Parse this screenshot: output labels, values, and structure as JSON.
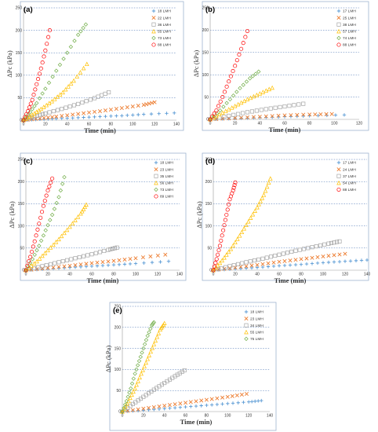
{
  "figure": {
    "colors": {
      "blue": "#5b9bd5",
      "orange": "#ed7d31",
      "gray": "#a5a5a5",
      "yellow": "#ffc000",
      "green": "#70ad47",
      "red": "#ff0000"
    }
  },
  "chart_data": [
    {
      "type": "scatter",
      "panel": "(a)",
      "xlabel": "Time (min)",
      "ylabel": "ΔPc (kPa)",
      "xlim": [
        0,
        140
      ],
      "ylim": [
        0,
        250
      ],
      "xticks": [
        "0",
        "20",
        "40",
        "60",
        "80",
        "100",
        "120",
        "140"
      ],
      "yticks": [
        "0",
        "50",
        "100",
        "150",
        "200",
        "250"
      ],
      "grid": true,
      "legend_position": "top-right",
      "series": [
        {
          "name": "18 LMH",
          "marker": "plus",
          "color": "#5b9bd5",
          "points": [
            [
              0,
              0
            ],
            [
              15,
              2
            ],
            [
              30,
              3.5
            ],
            [
              50,
              5.5
            ],
            [
              70,
              8
            ],
            [
              90,
              10
            ],
            [
              110,
              13
            ],
            [
              138,
              16
            ]
          ]
        },
        {
          "name": "22 LMH",
          "marker": "x",
          "color": "#ed7d31",
          "points": [
            [
              0,
              0
            ],
            [
              15,
              4
            ],
            [
              30,
              8
            ],
            [
              50,
              14
            ],
            [
              70,
              20
            ],
            [
              90,
              27
            ],
            [
              110,
              34
            ],
            [
              120,
              40
            ]
          ]
        },
        {
          "name": "36 LMH",
          "marker": "square",
          "color": "#a5a5a5",
          "points": [
            [
              0,
              0
            ],
            [
              10,
              8
            ],
            [
              20,
              15
            ],
            [
              35,
              25
            ],
            [
              50,
              36
            ],
            [
              65,
              49
            ],
            [
              78,
              62
            ]
          ]
        },
        {
          "name": "55 LMH",
          "marker": "triangle",
          "color": "#ffc000",
          "points": [
            [
              0,
              0
            ],
            [
              8,
              12
            ],
            [
              16,
              25
            ],
            [
              26,
              42
            ],
            [
              36,
              62
            ],
            [
              46,
              88
            ],
            [
              58,
              125
            ]
          ]
        },
        {
          "name": "73 LMH",
          "marker": "diamond",
          "color": "#70ad47",
          "points": [
            [
              0,
              0
            ],
            [
              6,
              18
            ],
            [
              12,
              38
            ],
            [
              20,
              70
            ],
            [
              30,
              110
            ],
            [
              40,
              150
            ],
            [
              50,
              190
            ],
            [
              57,
              213
            ]
          ]
        },
        {
          "name": "88 LMH",
          "marker": "circle",
          "color": "#ff0000",
          "points": [
            [
              0,
              0
            ],
            [
              4,
              20
            ],
            [
              8,
              45
            ],
            [
              12,
              80
            ],
            [
              16,
              115
            ],
            [
              20,
              155
            ],
            [
              24,
              200
            ]
          ]
        }
      ]
    },
    {
      "type": "scatter",
      "panel": "(b)",
      "xlabel": "Time (min)",
      "ylabel": "ΔPc (kPa)",
      "xlim": [
        0,
        120
      ],
      "ylim": [
        0,
        250
      ],
      "xticks": [
        "0",
        "20",
        "40",
        "60",
        "80",
        "100",
        "120"
      ],
      "yticks": [
        "0",
        "50",
        "100",
        "150",
        "200",
        "250"
      ],
      "grid": true,
      "legend_position": "top-right",
      "series": [
        {
          "name": "17 LMH",
          "marker": "plus",
          "color": "#5b9bd5",
          "points": [
            [
              0,
              0
            ],
            [
              20,
              2
            ],
            [
              40,
              4
            ],
            [
              60,
              6
            ],
            [
              80,
              8
            ],
            [
              108,
              10
            ]
          ]
        },
        {
          "name": "25 LMH",
          "marker": "x",
          "color": "#ed7d31",
          "points": [
            [
              0,
              0
            ],
            [
              20,
              3
            ],
            [
              40,
              6
            ],
            [
              60,
              9
            ],
            [
              80,
              11
            ],
            [
              98,
              12
            ]
          ]
        },
        {
          "name": "38 LMH",
          "marker": "square",
          "color": "#a5a5a5",
          "points": [
            [
              0,
              0
            ],
            [
              15,
              8
            ],
            [
              30,
              16
            ],
            [
              45,
              23
            ],
            [
              60,
              29
            ],
            [
              75,
              35
            ]
          ]
        },
        {
          "name": "57 LMH",
          "marker": "triangle",
          "color": "#ffc000",
          "points": [
            [
              0,
              0
            ],
            [
              10,
              15
            ],
            [
              20,
              30
            ],
            [
              30,
              45
            ],
            [
              40,
              58
            ],
            [
              50,
              71
            ]
          ]
        },
        {
          "name": "74 LMH",
          "marker": "diamond",
          "color": "#70ad47",
          "points": [
            [
              0,
              0
            ],
            [
              8,
              20
            ],
            [
              16,
              45
            ],
            [
              24,
              70
            ],
            [
              32,
              92
            ],
            [
              39,
              107
            ]
          ]
        },
        {
          "name": "88 LMH",
          "marker": "circle",
          "color": "#ff0000",
          "points": [
            [
              0,
              0
            ],
            [
              5,
              20
            ],
            [
              10,
              50
            ],
            [
              15,
              85
            ],
            [
              20,
              120
            ],
            [
              25,
              158
            ],
            [
              30,
              198
            ]
          ]
        }
      ]
    },
    {
      "type": "scatter",
      "panel": "(c)",
      "xlabel": "Time (min)",
      "ylabel": "ΔPc (kPa)",
      "xlim": [
        0,
        140
      ],
      "ylim": [
        0,
        250
      ],
      "xticks": [
        "0",
        "20",
        "40",
        "60",
        "80",
        "100",
        "120",
        "140"
      ],
      "yticks": [
        "0",
        "50",
        "100",
        "150",
        "200",
        "250"
      ],
      "grid": true,
      "legend_position": "top-right",
      "series": [
        {
          "name": "18 LMH",
          "marker": "plus",
          "color": "#5b9bd5",
          "points": [
            [
              0,
              0
            ],
            [
              20,
              3
            ],
            [
              40,
              6
            ],
            [
              60,
              9
            ],
            [
              80,
              12
            ],
            [
              100,
              15
            ],
            [
              130,
              20
            ]
          ]
        },
        {
          "name": "23 LMH",
          "marker": "x",
          "color": "#ed7d31",
          "points": [
            [
              0,
              0
            ],
            [
              20,
              5
            ],
            [
              40,
              10
            ],
            [
              60,
              16
            ],
            [
              80,
              21
            ],
            [
              100,
              27
            ],
            [
              127,
              35
            ]
          ]
        },
        {
          "name": "35 LMH",
          "marker": "square",
          "color": "#a5a5a5",
          "points": [
            [
              0,
              0
            ],
            [
              15,
              9
            ],
            [
              30,
              18
            ],
            [
              45,
              27
            ],
            [
              60,
              36
            ],
            [
              75,
              46
            ],
            [
              83,
              51
            ]
          ]
        },
        {
          "name": "56 LMH",
          "marker": "triangle",
          "color": "#ffc000",
          "points": [
            [
              0,
              0
            ],
            [
              10,
              20
            ],
            [
              20,
              45
            ],
            [
              30,
              70
            ],
            [
              40,
              98
            ],
            [
              50,
              128
            ],
            [
              55,
              148
            ]
          ]
        },
        {
          "name": "73 LMH",
          "marker": "diamond",
          "color": "#70ad47",
          "points": [
            [
              0,
              0
            ],
            [
              6,
              25
            ],
            [
              12,
              55
            ],
            [
              18,
              90
            ],
            [
              24,
              125
            ],
            [
              30,
              165
            ],
            [
              35,
              210
            ]
          ]
        },
        {
          "name": "89 LMH",
          "marker": "circle",
          "color": "#ff0000",
          "points": [
            [
              0,
              0
            ],
            [
              4,
              30
            ],
            [
              8,
              65
            ],
            [
              12,
              105
            ],
            [
              16,
              145
            ],
            [
              20,
              180
            ],
            [
              24,
              207
            ]
          ]
        }
      ]
    },
    {
      "type": "scatter",
      "panel": "(d)",
      "xlabel": "Time (min)",
      "ylabel": "ΔPc (kPa)",
      "xlim": [
        0,
        140
      ],
      "ylim": [
        0,
        250
      ],
      "xticks": [
        "0",
        "20",
        "40",
        "60",
        "80",
        "100",
        "120",
        "140"
      ],
      "yticks": [
        "0",
        "50",
        "100",
        "150",
        "200",
        "250"
      ],
      "grid": true,
      "legend_position": "top-right",
      "series": [
        {
          "name": "17 LMH",
          "marker": "plus",
          "color": "#5b9bd5",
          "points": [
            [
              0,
              0
            ],
            [
              20,
              3
            ],
            [
              40,
              6
            ],
            [
              60,
              10
            ],
            [
              80,
              13
            ],
            [
              100,
              17
            ],
            [
              120,
              20
            ],
            [
              140,
              23
            ]
          ]
        },
        {
          "name": "24 LMH",
          "marker": "x",
          "color": "#ed7d31",
          "points": [
            [
              0,
              0
            ],
            [
              20,
              6
            ],
            [
              40,
              12
            ],
            [
              60,
              19
            ],
            [
              80,
              25
            ],
            [
              100,
              31
            ],
            [
              120,
              37
            ]
          ]
        },
        {
          "name": "37 LMH",
          "marker": "square",
          "color": "#a5a5a5",
          "points": [
            [
              0,
              0
            ],
            [
              15,
              9
            ],
            [
              30,
              18
            ],
            [
              45,
              26
            ],
            [
              60,
              35
            ],
            [
              75,
              44
            ],
            [
              90,
              52
            ],
            [
              105,
              60
            ],
            [
              115,
              65
            ]
          ]
        },
        {
          "name": "54 LMH",
          "marker": "triangle",
          "color": "#ffc000",
          "points": [
            [
              0,
              0
            ],
            [
              8,
              22
            ],
            [
              16,
              48
            ],
            [
              24,
              78
            ],
            [
              32,
              110
            ],
            [
              40,
              142
            ],
            [
              46,
              170
            ],
            [
              52,
              207
            ]
          ]
        },
        {
          "name": "88 LMH",
          "marker": "circle",
          "color": "#ff0000",
          "points": [
            [
              0,
              0
            ],
            [
              3,
              25
            ],
            [
              6,
              55
            ],
            [
              9,
              90
            ],
            [
              12,
              125
            ],
            [
              15,
              160
            ],
            [
              18,
              180
            ],
            [
              20,
              198
            ]
          ]
        }
      ]
    },
    {
      "type": "scatter",
      "panel": "(e)",
      "xlabel": "Time (min)",
      "ylabel": "ΔPc (kPa)",
      "xlim": [
        0,
        140
      ],
      "ylim": [
        0,
        250
      ],
      "xticks": [
        "0",
        "20",
        "40",
        "60",
        "80",
        "100",
        "120",
        "140"
      ],
      "yticks": [
        "0",
        "50",
        "100",
        "150",
        "200",
        "250"
      ],
      "grid": true,
      "legend_position": "top-right",
      "series": [
        {
          "name": "18 LMH",
          "marker": "plus",
          "color": "#5b9bd5",
          "points": [
            [
              0,
              0
            ],
            [
              20,
              3
            ],
            [
              40,
              7
            ],
            [
              60,
              11
            ],
            [
              80,
              15
            ],
            [
              100,
              19
            ],
            [
              120,
              23
            ],
            [
              132,
              26
            ]
          ]
        },
        {
          "name": "23 LMH",
          "marker": "x",
          "color": "#ed7d31",
          "points": [
            [
              0,
              0
            ],
            [
              20,
              7
            ],
            [
              40,
              14
            ],
            [
              60,
              21
            ],
            [
              80,
              28
            ],
            [
              100,
              35
            ],
            [
              118,
              42
            ]
          ]
        },
        {
          "name": "34 LMH",
          "marker": "square",
          "color": "#a5a5a5",
          "points": [
            [
              0,
              0
            ],
            [
              10,
              18
            ],
            [
              20,
              35
            ],
            [
              30,
              52
            ],
            [
              40,
              68
            ],
            [
              50,
              84
            ],
            [
              59,
              98
            ]
          ]
        },
        {
          "name": "55 LMH",
          "marker": "triangle",
          "color": "#ffc000",
          "points": [
            [
              0,
              0
            ],
            [
              6,
              25
            ],
            [
              12,
              55
            ],
            [
              18,
              90
            ],
            [
              24,
              125
            ],
            [
              30,
              160
            ],
            [
              36,
              195
            ],
            [
              40,
              210
            ]
          ]
        },
        {
          "name": "75 LMH",
          "marker": "diamond",
          "color": "#70ad47",
          "points": [
            [
              0,
              0
            ],
            [
              4,
              25
            ],
            [
              8,
              55
            ],
            [
              12,
              90
            ],
            [
              16,
              120
            ],
            [
              20,
              150
            ],
            [
              24,
              180
            ],
            [
              28,
              205
            ],
            [
              30,
              212
            ]
          ]
        }
      ]
    }
  ]
}
